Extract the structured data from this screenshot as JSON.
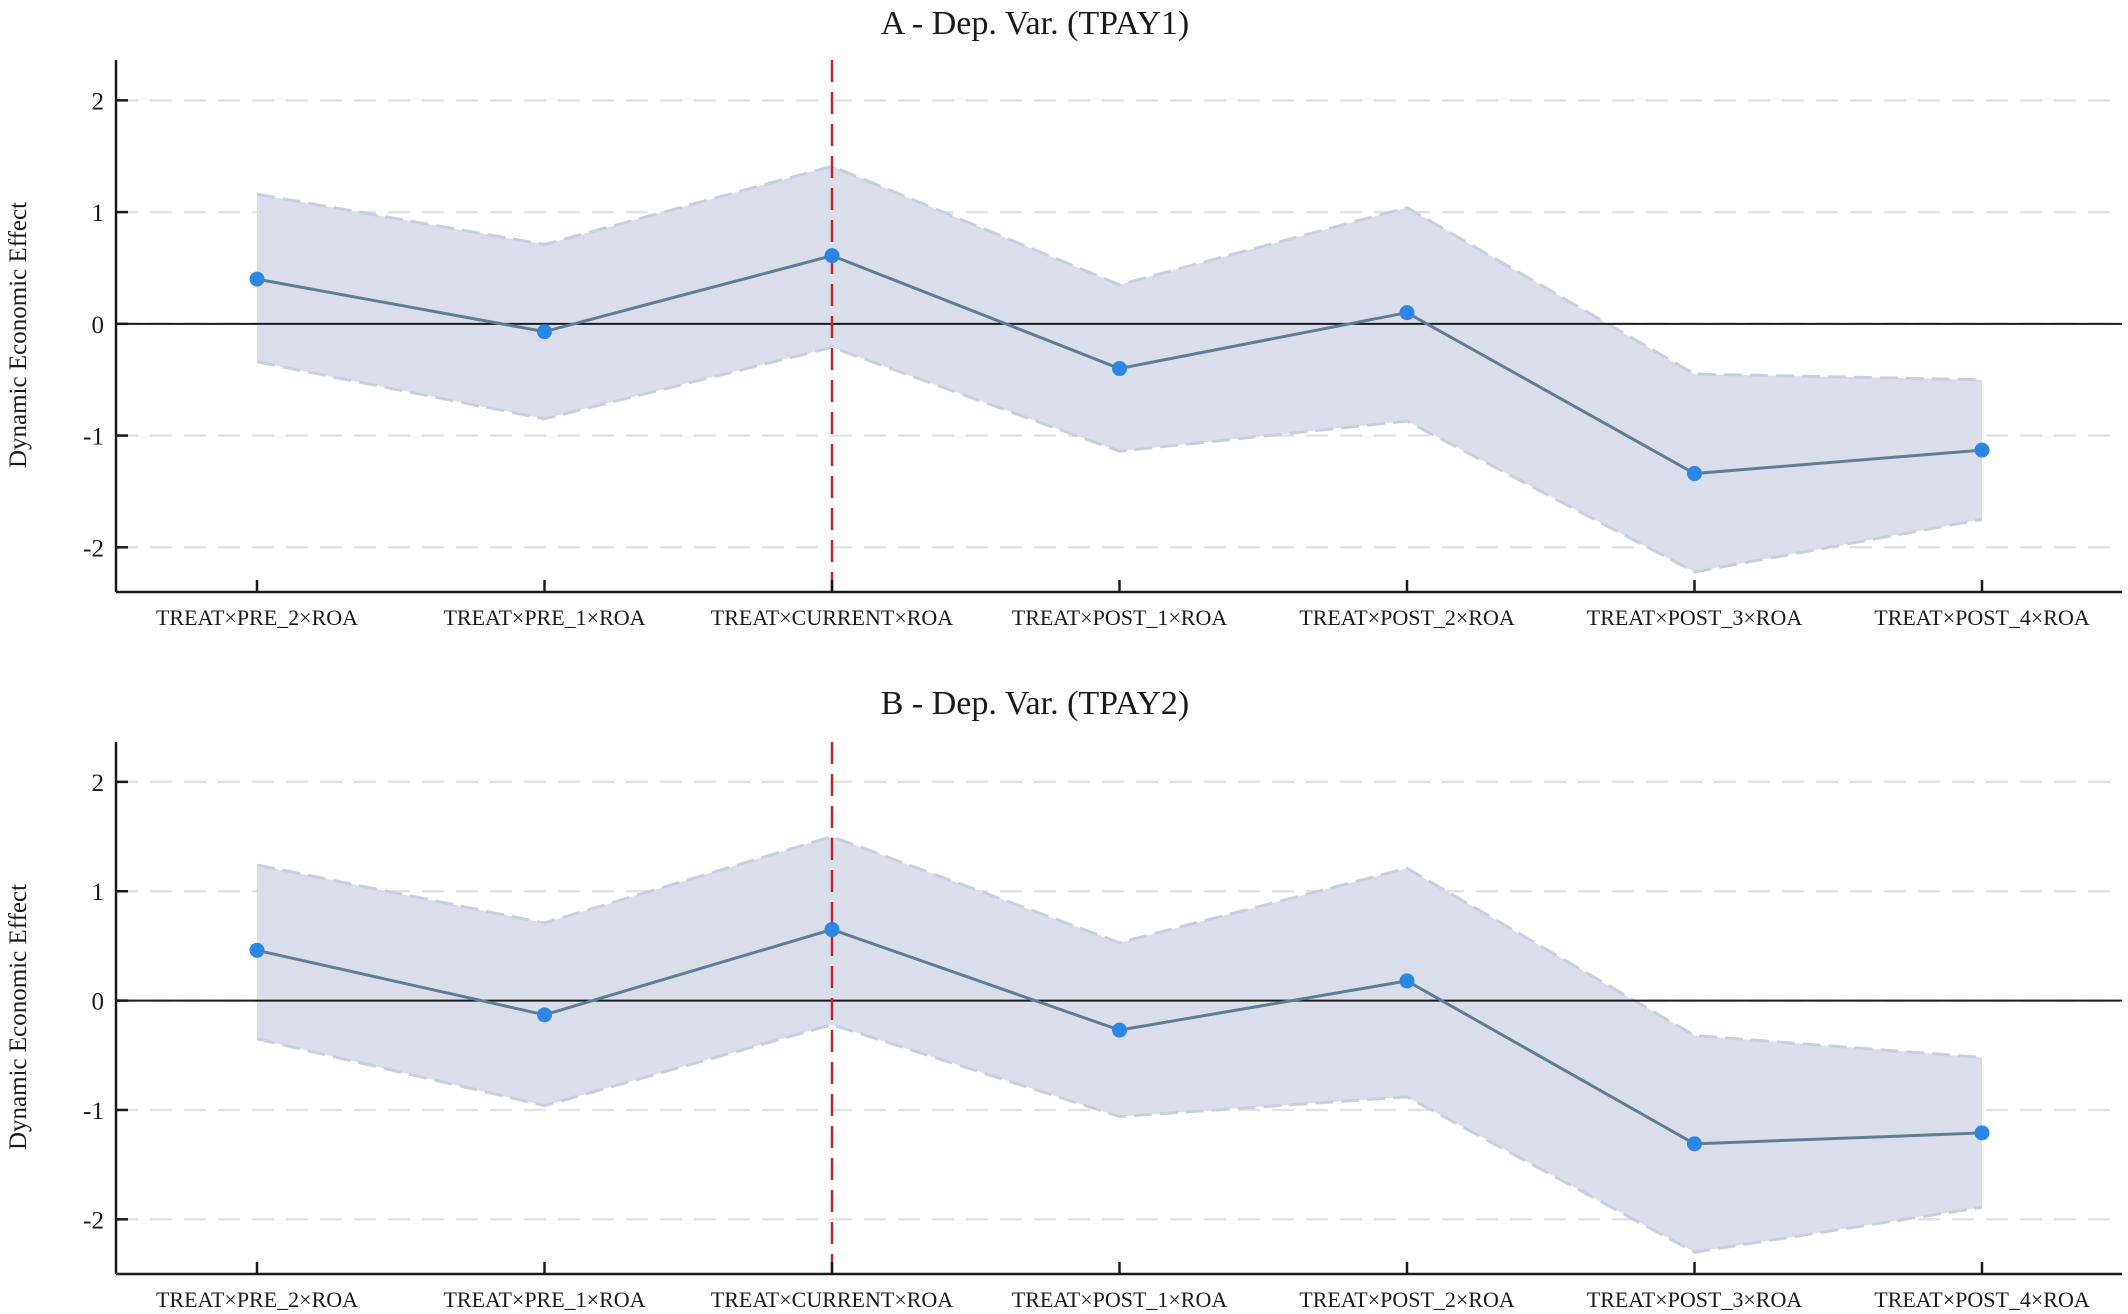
{
  "chart_data": [
    {
      "type": "line",
      "title": "A - Dep. Var. (TPAY1)",
      "xlabel": "",
      "ylabel": "Dynamic Economic Effect",
      "categories": [
        "TREAT×PRE_2×ROA",
        "TREAT×PRE_1×ROA",
        "TREAT×CURRENT×ROA",
        "TREAT×POST_1×ROA",
        "TREAT×POST_2×ROA",
        "TREAT×POST_3×ROA",
        "TREAT×POST_4×ROA"
      ],
      "values": [
        0.4,
        -0.07,
        0.61,
        -0.4,
        0.1,
        -1.34,
        -1.13
      ],
      "ci_upper": [
        1.16,
        0.71,
        1.41,
        0.35,
        1.04,
        -0.45,
        -0.5
      ],
      "ci_lower": [
        -0.34,
        -0.85,
        -0.21,
        -1.14,
        -0.87,
        -2.22,
        -1.75
      ],
      "ylim": [
        -2.4,
        2.2
      ],
      "yticks": [
        2,
        1,
        0,
        -1,
        -2
      ],
      "ytick_labels": [
        "2",
        "1",
        "0",
        "-1",
        "-2"
      ],
      "event_line_category": "TREAT×CURRENT×ROA",
      "grid": true,
      "zero_line": true,
      "colors": {
        "line": "#5f7d93",
        "marker": "#2b87e3",
        "band": "#d9deea",
        "band_edge": "#c8cfe0",
        "event_line": "#c0282d",
        "grid": "#e3e3e3",
        "axis": "#1a1a1a"
      }
    },
    {
      "type": "line",
      "title": "B - Dep. Var. (TPAY2)",
      "xlabel": "",
      "ylabel": "Dynamic Economic Effect",
      "categories": [
        "TREAT×PRE_2×ROA",
        "TREAT×PRE_1×ROA",
        "TREAT×CURRENT×ROA",
        "TREAT×POST_1×ROA",
        "TREAT×POST_2×ROA",
        "TREAT×POST_3×ROA",
        "TREAT×POST_4×ROA"
      ],
      "values": [
        0.46,
        -0.13,
        0.65,
        -0.27,
        0.18,
        -1.31,
        -1.21
      ],
      "ci_upper": [
        1.24,
        0.71,
        1.5,
        0.53,
        1.21,
        -0.32,
        -0.52
      ],
      "ci_lower": [
        -0.35,
        -0.96,
        -0.22,
        -1.06,
        -0.88,
        -2.3,
        -1.89
      ],
      "ylim": [
        -2.5,
        2.2
      ],
      "yticks": [
        2,
        1,
        0,
        -1,
        -2
      ],
      "ytick_labels": [
        "2",
        "1",
        "0",
        "-1",
        "-2"
      ],
      "event_line_category": "TREAT×CURRENT×ROA",
      "grid": true,
      "zero_line": true,
      "colors": {
        "line": "#5f7d93",
        "marker": "#2b87e3",
        "band": "#d9deea",
        "band_edge": "#c8cfe0",
        "event_line": "#c0282d",
        "grid": "#e3e3e3",
        "axis": "#1a1a1a"
      }
    }
  ]
}
